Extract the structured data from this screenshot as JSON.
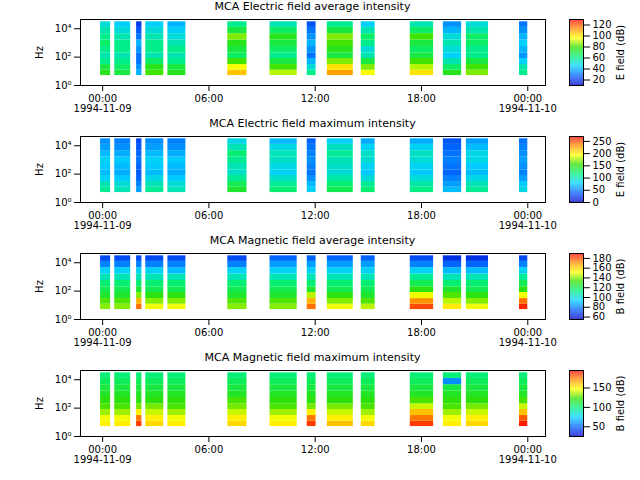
{
  "chart_data": [
    {
      "type": "heatmap",
      "title": "MCA  Electric field average intensity",
      "y_label": "Hz",
      "log": "y",
      "xlim": [
        "1994-11-08T22:45",
        "1994-11-10T01:00"
      ],
      "xticks": [
        {
          "value": "1994-11-09T00:00",
          "label": "00:00\n1994-11-09"
        },
        {
          "value": "1994-11-09T06:00",
          "label": "06:00"
        },
        {
          "value": "1994-11-09T12:00",
          "label": "12:00"
        },
        {
          "value": "1994-11-09T18:00",
          "label": "18:00"
        },
        {
          "value": "1994-11-10T00:00",
          "label": "00:00\n1994-11-10"
        }
      ],
      "ylim": [
        1,
        45000
      ],
      "yticks": [
        {
          "value": 1,
          "label": "10⁰"
        },
        {
          "value": 100,
          "label": "10²"
        },
        {
          "value": 10000,
          "label": "10⁴"
        }
      ],
      "x_bins": [
        [
          "1994-11-08T23:53",
          "1994-11-09T00:27"
        ],
        [
          "1994-11-09T00:41",
          "1994-11-09T01:35"
        ],
        [
          "1994-11-09T01:55",
          "1994-11-09T02:13"
        ],
        [
          "1994-11-09T02:26",
          "1994-11-09T03:27"
        ],
        [
          "1994-11-09T03:41",
          "1994-11-09T04:42"
        ],
        [
          "1994-11-09T07:04",
          "1994-11-09T08:09"
        ],
        [
          "1994-11-09T09:27",
          "1994-11-09T10:59"
        ],
        [
          "1994-11-09T11:33",
          "1994-11-09T12:03"
        ],
        [
          "1994-11-09T12:41",
          "1994-11-09T14:09"
        ],
        [
          "1994-11-09T14:36",
          "1994-11-09T15:23"
        ],
        [
          "1994-11-09T17:22",
          "1994-11-09T18:41"
        ],
        [
          "1994-11-09T19:14",
          "1994-11-09T20:16"
        ],
        [
          "1994-11-09T20:32",
          "1994-11-09T21:47"
        ],
        [
          "1994-11-09T23:32",
          "1994-11-10T00:00"
        ]
      ],
      "y_bins": [
        5,
        12,
        30,
        80,
        200,
        560,
        1600,
        4500,
        12500,
        31000
      ],
      "cells": [
        [
          75,
          70,
          60,
          55,
          60,
          65,
          60,
          55,
          50
        ],
        [
          70,
          65,
          60,
          55,
          60,
          60,
          55,
          50,
          45
        ],
        [
          40,
          35,
          30,
          30,
          35,
          40,
          30,
          25,
          20
        ],
        [
          80,
          75,
          65,
          55,
          60,
          60,
          55,
          50,
          45
        ],
        [
          75,
          70,
          60,
          55,
          60,
          55,
          50,
          45,
          40
        ],
        [
          105,
          95,
          80,
          65,
          70,
          75,
          85,
          70,
          60
        ],
        [
          90,
          80,
          70,
          60,
          65,
          70,
          75,
          65,
          55
        ],
        [
          60,
          50,
          40,
          30,
          35,
          40,
          35,
          30,
          25
        ],
        [
          110,
          100,
          85,
          70,
          75,
          80,
          85,
          70,
          60
        ],
        [
          95,
          85,
          70,
          55,
          50,
          60,
          65,
          55,
          45
        ],
        [
          100,
          90,
          80,
          70,
          65,
          70,
          80,
          65,
          55
        ],
        [
          75,
          65,
          55,
          45,
          50,
          55,
          50,
          40,
          35
        ],
        [
          85,
          80,
          70,
          60,
          60,
          65,
          65,
          55,
          50
        ],
        [
          60,
          55,
          45,
          35,
          40,
          45,
          40,
          35,
          30
        ]
      ],
      "colorbar": {
        "label": "E field (dB)",
        "range": [
          10,
          130
        ],
        "ticks": [
          20,
          40,
          60,
          80,
          100,
          120
        ]
      }
    },
    {
      "type": "heatmap",
      "title": "MCA  Electric field maximum intensity",
      "y_label": "Hz",
      "log": "y",
      "xlim": [
        "1994-11-08T22:45",
        "1994-11-10T01:00"
      ],
      "xticks": [
        {
          "value": "1994-11-09T00:00",
          "label": "00:00\n1994-11-09"
        },
        {
          "value": "1994-11-09T06:00",
          "label": "06:00"
        },
        {
          "value": "1994-11-09T12:00",
          "label": "12:00"
        },
        {
          "value": "1994-11-09T18:00",
          "label": "18:00"
        },
        {
          "value": "1994-11-10T00:00",
          "label": "00:00\n1994-11-10"
        }
      ],
      "ylim": [
        1,
        45000
      ],
      "yticks": [
        {
          "value": 1,
          "label": "10⁰"
        },
        {
          "value": 100,
          "label": "10²"
        },
        {
          "value": 10000,
          "label": "10⁴"
        }
      ],
      "x_bins": [
        [
          "1994-11-08T23:53",
          "1994-11-09T00:27"
        ],
        [
          "1994-11-09T00:41",
          "1994-11-09T01:35"
        ],
        [
          "1994-11-09T01:55",
          "1994-11-09T02:13"
        ],
        [
          "1994-11-09T02:26",
          "1994-11-09T03:27"
        ],
        [
          "1994-11-09T03:41",
          "1994-11-09T04:42"
        ],
        [
          "1994-11-09T07:04",
          "1994-11-09T08:09"
        ],
        [
          "1994-11-09T09:27",
          "1994-11-09T10:59"
        ],
        [
          "1994-11-09T11:33",
          "1994-11-09T12:03"
        ],
        [
          "1994-11-09T12:41",
          "1994-11-09T14:09"
        ],
        [
          "1994-11-09T14:36",
          "1994-11-09T15:23"
        ],
        [
          "1994-11-09T17:22",
          "1994-11-09T18:41"
        ],
        [
          "1994-11-09T19:14",
          "1994-11-09T20:16"
        ],
        [
          "1994-11-09T20:32",
          "1994-11-09T21:47"
        ],
        [
          "1994-11-09T23:32",
          "1994-11-10T00:00"
        ]
      ],
      "y_bins": [
        5,
        12,
        30,
        80,
        200,
        560,
        1600,
        4500,
        12500,
        31000
      ],
      "cells": [
        [
          110,
          100,
          80,
          70,
          75,
          80,
          70,
          60,
          55
        ],
        [
          100,
          90,
          75,
          65,
          70,
          75,
          65,
          55,
          50
        ],
        [
          60,
          50,
          40,
          35,
          40,
          45,
          40,
          35,
          30
        ],
        [
          110,
          100,
          85,
          70,
          75,
          80,
          70,
          60,
          55
        ],
        [
          100,
          90,
          75,
          65,
          70,
          75,
          65,
          55,
          50
        ],
        [
          140,
          130,
          110,
          95,
          100,
          110,
          120,
          100,
          85
        ],
        [
          120,
          110,
          95,
          80,
          85,
          95,
          100,
          85,
          70
        ],
        [
          80,
          70,
          55,
          45,
          50,
          55,
          50,
          45,
          40
        ],
        [
          130,
          120,
          105,
          90,
          95,
          100,
          110,
          95,
          80
        ],
        [
          120,
          110,
          90,
          75,
          80,
          90,
          95,
          80,
          65
        ],
        [
          115,
          105,
          90,
          75,
          80,
          90,
          95,
          80,
          65
        ],
        [
          70,
          60,
          50,
          40,
          45,
          50,
          45,
          40,
          35
        ],
        [
          110,
          100,
          85,
          70,
          75,
          85,
          85,
          70,
          60
        ],
        [
          85,
          75,
          60,
          50,
          55,
          60,
          55,
          50,
          45
        ]
      ],
      "colorbar": {
        "label": "E field (dB)",
        "range": [
          0,
          270
        ],
        "ticks": [
          0,
          50,
          100,
          150,
          200,
          250
        ]
      }
    },
    {
      "type": "heatmap",
      "title": "MCA  Magnetic field average intensity",
      "y_label": "Hz",
      "log": "y",
      "xlim": [
        "1994-11-08T22:45",
        "1994-11-10T01:00"
      ],
      "xticks": [
        {
          "value": "1994-11-09T00:00",
          "label": "00:00\n1994-11-09"
        },
        {
          "value": "1994-11-09T06:00",
          "label": "06:00"
        },
        {
          "value": "1994-11-09T12:00",
          "label": "12:00"
        },
        {
          "value": "1994-11-09T18:00",
          "label": "18:00"
        },
        {
          "value": "1994-11-10T00:00",
          "label": "00:00\n1994-11-10"
        }
      ],
      "ylim": [
        1,
        45000
      ],
      "yticks": [
        {
          "value": 1,
          "label": "10⁰"
        },
        {
          "value": 100,
          "label": "10²"
        },
        {
          "value": 10000,
          "label": "10⁴"
        }
      ],
      "x_bins": [
        [
          "1994-11-08T23:53",
          "1994-11-09T00:27"
        ],
        [
          "1994-11-09T00:41",
          "1994-11-09T01:35"
        ],
        [
          "1994-11-09T01:55",
          "1994-11-09T02:13"
        ],
        [
          "1994-11-09T02:26",
          "1994-11-09T03:27"
        ],
        [
          "1994-11-09T03:41",
          "1994-11-09T04:42"
        ],
        [
          "1994-11-09T07:04",
          "1994-11-09T08:09"
        ],
        [
          "1994-11-09T09:27",
          "1994-11-09T10:59"
        ],
        [
          "1994-11-09T11:33",
          "1994-11-09T12:03"
        ],
        [
          "1994-11-09T12:41",
          "1994-11-09T14:09"
        ],
        [
          "1994-11-09T14:36",
          "1994-11-09T15:23"
        ],
        [
          "1994-11-09T17:22",
          "1994-11-09T18:41"
        ],
        [
          "1994-11-09T19:14",
          "1994-11-09T20:16"
        ],
        [
          "1994-11-09T20:32",
          "1994-11-09T21:47"
        ],
        [
          "1994-11-09T23:32",
          "1994-11-10T00:00"
        ]
      ],
      "y_bins": [
        5,
        12,
        30,
        80,
        200,
        560,
        1600,
        4500,
        12500,
        31000
      ],
      "cells": [
        [
          140,
          135,
          125,
          120,
          115,
          105,
          95,
          80,
          70
        ],
        [
          140,
          135,
          125,
          120,
          115,
          105,
          95,
          80,
          70
        ],
        [
          175,
          165,
          140,
          125,
          115,
          105,
          95,
          80,
          70
        ],
        [
          150,
          140,
          130,
          120,
          115,
          105,
          95,
          80,
          70
        ],
        [
          150,
          140,
          130,
          120,
          115,
          105,
          90,
          80,
          70
        ],
        [
          140,
          135,
          125,
          120,
          115,
          105,
          95,
          80,
          70
        ],
        [
          140,
          135,
          125,
          120,
          115,
          105,
          95,
          85,
          75
        ],
        [
          175,
          165,
          145,
          125,
          115,
          105,
          95,
          85,
          75
        ],
        [
          150,
          140,
          130,
          120,
          115,
          105,
          95,
          85,
          75
        ],
        [
          145,
          135,
          125,
          120,
          115,
          105,
          95,
          85,
          75
        ],
        [
          180,
          170,
          150,
          130,
          120,
          110,
          95,
          80,
          70
        ],
        [
          155,
          145,
          135,
          125,
          115,
          105,
          90,
          75,
          65
        ],
        [
          150,
          140,
          130,
          120,
          115,
          105,
          90,
          75,
          65
        ],
        [
          185,
          175,
          150,
          130,
          120,
          110,
          95,
          80,
          70
        ]
      ],
      "colorbar": {
        "label": "B field (dB)",
        "range": [
          55,
          190
        ],
        "ticks": [
          60,
          80,
          100,
          120,
          140,
          160,
          180
        ]
      }
    },
    {
      "type": "heatmap",
      "title": "MCA  Magnetic field maximum intensity",
      "y_label": "Hz",
      "log": "y",
      "xlim": [
        "1994-11-08T22:45",
        "1994-11-10T01:00"
      ],
      "xticks": [
        {
          "value": "1994-11-09T00:00",
          "label": "00:00\n1994-11-09"
        },
        {
          "value": "1994-11-09T06:00",
          "label": "06:00"
        },
        {
          "value": "1994-11-09T12:00",
          "label": "12:00"
        },
        {
          "value": "1994-11-09T18:00",
          "label": "18:00"
        },
        {
          "value": "1994-11-10T00:00",
          "label": "00:00\n1994-11-10"
        }
      ],
      "ylim": [
        1,
        45000
      ],
      "yticks": [
        {
          "value": 1,
          "label": "10⁰"
        },
        {
          "value": 100,
          "label": "10²"
        },
        {
          "value": 10000,
          "label": "10⁴"
        }
      ],
      "x_bins": [
        [
          "1994-11-08T23:53",
          "1994-11-09T00:27"
        ],
        [
          "1994-11-09T00:41",
          "1994-11-09T01:35"
        ],
        [
          "1994-11-09T01:55",
          "1994-11-09T02:13"
        ],
        [
          "1994-11-09T02:26",
          "1994-11-09T03:27"
        ],
        [
          "1994-11-09T03:41",
          "1994-11-09T04:42"
        ],
        [
          "1994-11-09T07:04",
          "1994-11-09T08:09"
        ],
        [
          "1994-11-09T09:27",
          "1994-11-09T10:59"
        ],
        [
          "1994-11-09T11:33",
          "1994-11-09T12:03"
        ],
        [
          "1994-11-09T12:41",
          "1994-11-09T14:09"
        ],
        [
          "1994-11-09T14:36",
          "1994-11-09T15:23"
        ],
        [
          "1994-11-09T17:22",
          "1994-11-09T18:41"
        ],
        [
          "1994-11-09T19:14",
          "1994-11-09T20:16"
        ],
        [
          "1994-11-09T20:32",
          "1994-11-09T21:47"
        ],
        [
          "1994-11-09T23:32",
          "1994-11-10T00:00"
        ]
      ],
      "y_bins": [
        5,
        12,
        30,
        80,
        200,
        560,
        1600,
        4500,
        12500,
        31000
      ],
      "cells": [
        [
          150,
          145,
          135,
          125,
          120,
          115,
          110,
          105,
          100
        ],
        [
          150,
          145,
          135,
          125,
          120,
          115,
          110,
          105,
          100
        ],
        [
          185,
          175,
          150,
          130,
          120,
          115,
          110,
          105,
          100
        ],
        [
          155,
          150,
          140,
          130,
          120,
          115,
          110,
          105,
          100
        ],
        [
          150,
          145,
          135,
          125,
          120,
          115,
          110,
          105,
          100
        ],
        [
          155,
          150,
          140,
          130,
          125,
          115,
          110,
          105,
          100
        ],
        [
          150,
          145,
          135,
          125,
          120,
          115,
          110,
          105,
          100
        ],
        [
          185,
          175,
          150,
          130,
          120,
          115,
          110,
          105,
          100
        ],
        [
          160,
          150,
          140,
          130,
          120,
          115,
          110,
          105,
          100
        ],
        [
          155,
          145,
          135,
          125,
          120,
          115,
          110,
          105,
          100
        ],
        [
          185,
          175,
          160,
          140,
          125,
          115,
          110,
          105,
          100
        ],
        [
          150,
          145,
          135,
          125,
          120,
          115,
          110,
          60,
          100
        ],
        [
          155,
          150,
          140,
          130,
          120,
          115,
          110,
          105,
          100
        ],
        [
          190,
          180,
          160,
          140,
          125,
          115,
          110,
          105,
          100
        ]
      ],
      "colorbar": {
        "label": "B field (dB)",
        "range": [
          25,
          195
        ],
        "ticks": [
          50,
          100,
          150
        ]
      }
    }
  ]
}
